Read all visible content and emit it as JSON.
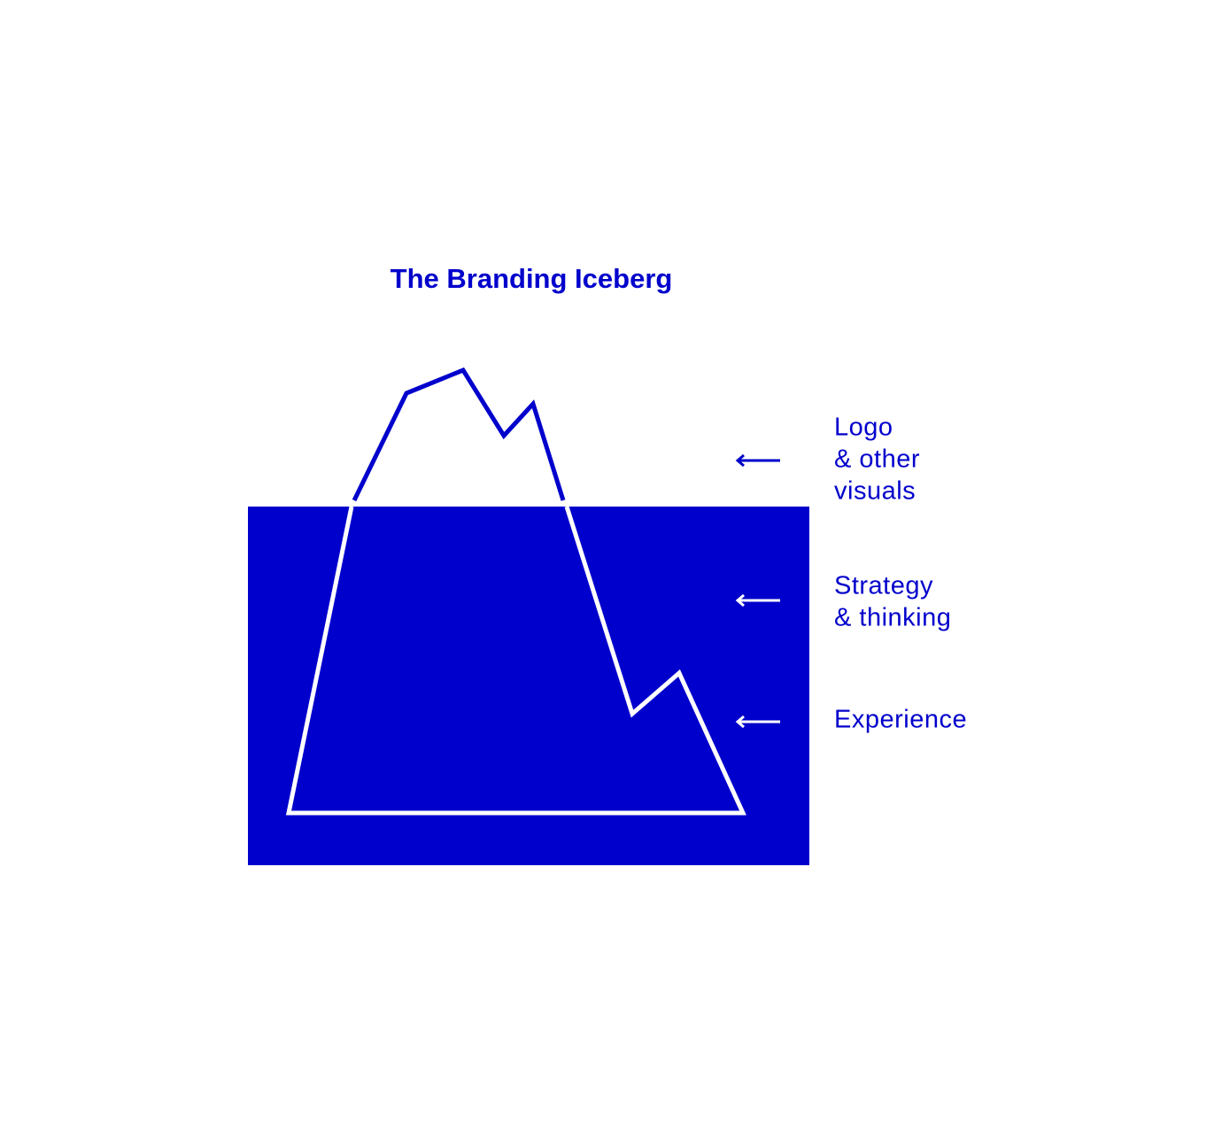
{
  "title": "The Branding Iceberg",
  "labels": [
    {
      "lines": [
        "Logo",
        "& other",
        "visuals"
      ]
    },
    {
      "lines": [
        "Strategy",
        "& thinking"
      ]
    },
    {
      "lines": [
        "Experience"
      ]
    }
  ]
}
